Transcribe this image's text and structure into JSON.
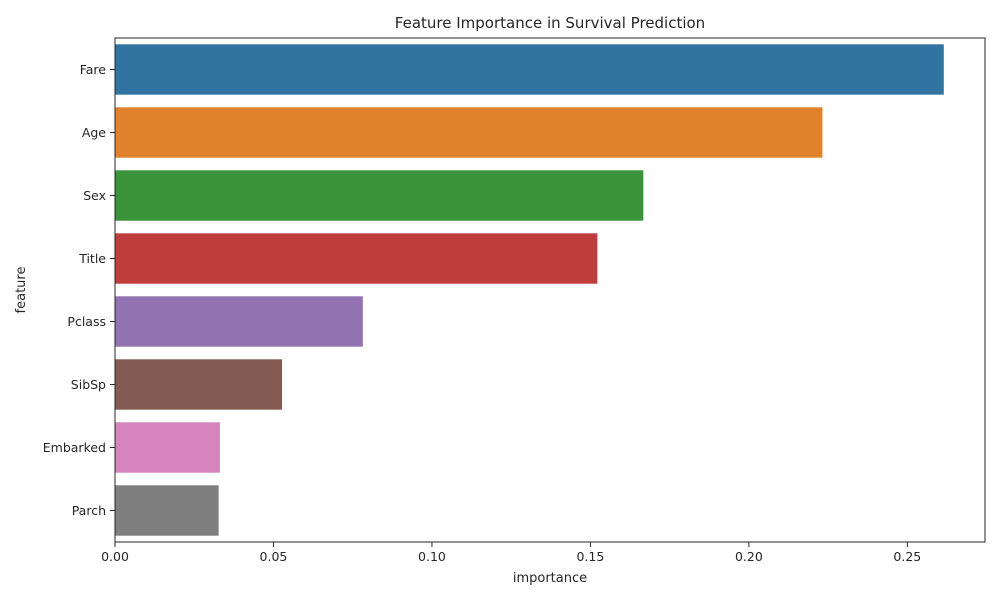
{
  "chart_data": {
    "type": "bar",
    "orientation": "horizontal",
    "title": "Feature Importance in Survival Prediction",
    "xlabel": "importance",
    "ylabel": "feature",
    "categories": [
      "Fare",
      "Age",
      "Sex",
      "Title",
      "Pclass",
      "SibSp",
      "Embarked",
      "Parch"
    ],
    "values": [
      0.2615,
      0.2232,
      0.1667,
      0.1522,
      0.0782,
      0.0527,
      0.0331,
      0.0327
    ],
    "colors": [
      "#3274a1",
      "#e1812c",
      "#3a923a",
      "#c03d3e",
      "#9372b2",
      "#845b53",
      "#d684bd",
      "#7f7f7f"
    ],
    "xlim": [
      0,
      0.2745
    ],
    "xticks": [
      0.0,
      0.05,
      0.1,
      0.15,
      0.2,
      0.25
    ],
    "xtick_labels": [
      "0.00",
      "0.05",
      "0.10",
      "0.15",
      "0.20",
      "0.25"
    ],
    "grid": false,
    "legend": "none"
  }
}
